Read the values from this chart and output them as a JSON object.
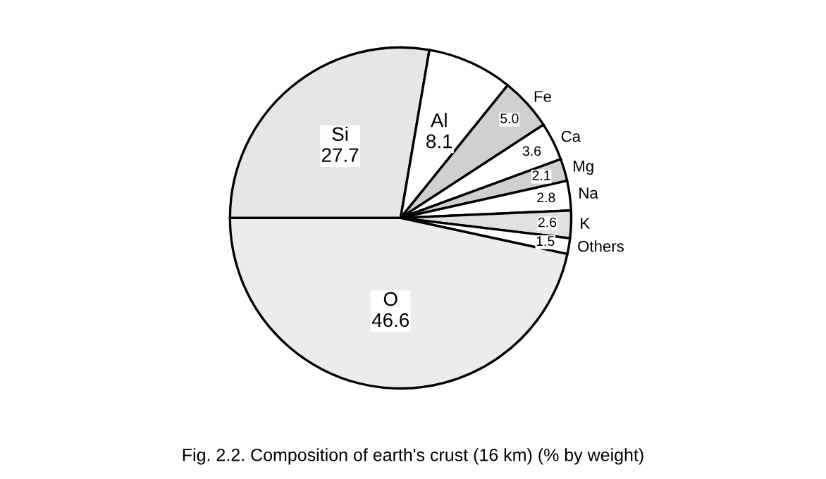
{
  "chart_data": {
    "type": "pie",
    "title": "Fig. 2.2. Composition of earth's crust (16 km) (% by weight)",
    "categories": [
      "Si",
      "Al",
      "Fe",
      "Ca",
      "Mg",
      "Na",
      "K",
      "Others",
      "O"
    ],
    "values": [
      27.7,
      8.1,
      5.0,
      3.6,
      2.1,
      2.8,
      2.6,
      1.5,
      46.6
    ],
    "colors": [
      "#e6e6e6",
      "#ffffff",
      "#d0d0d0",
      "#ffffff",
      "#d0d0d0",
      "#ffffff",
      "#e0e0e0",
      "#ffffff",
      "#ececec"
    ],
    "value_labels": [
      "27.7",
      "8.1",
      "5.0",
      "3.6",
      "2.1",
      "2.8",
      "2.6",
      "1.5",
      "46.6"
    ]
  }
}
